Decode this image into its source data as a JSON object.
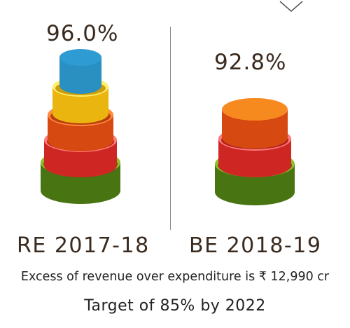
{
  "chart_data": {
    "type": "bar",
    "style": "stacked-cylinder",
    "categories": [
      "RE 2017-18",
      "BE 2018-19"
    ],
    "values": [
      96.0,
      92.8
    ],
    "value_labels": [
      "96.0%",
      "92.8%"
    ],
    "tiers": [
      [
        "#4e7e12",
        "#e02a26",
        "#e94f12",
        "#ffc510",
        "#2e9bd2"
      ],
      [
        "#4e7e12",
        "#e02a26",
        "#e94f12",
        "#f68a1f"
      ]
    ],
    "rims": [
      [
        "#8fbf2a",
        "#ff7a7a",
        "#ff8a3a",
        "#fff06a",
        "#2e9bd2"
      ],
      [
        "#8fbf2a",
        "#ff7a7a",
        "#ff8a3a",
        "#f68a1f"
      ]
    ]
  },
  "notes": {
    "surplus": "Excess of revenue over expenditure is ₹ 12,990 cr",
    "target": "Target of 85% by 2022"
  }
}
